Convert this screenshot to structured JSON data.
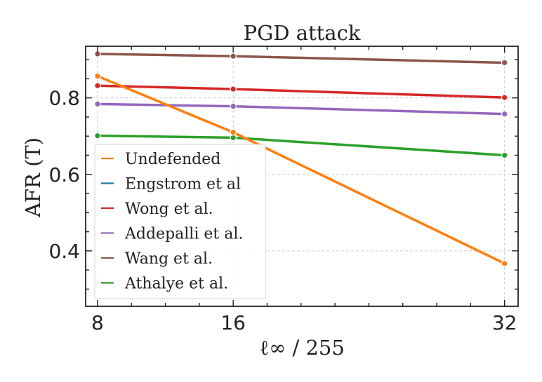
{
  "chart_data": {
    "type": "line",
    "title": "PGD attack",
    "xlabel": "ℓ∞ / 255",
    "ylabel": "AFR (T)",
    "x": [
      8,
      16,
      32
    ],
    "x_tick_labels": [
      "8",
      "16",
      "32"
    ],
    "xlim": [
      7.3,
      32.8
    ],
    "ylim": [
      0.255,
      0.935
    ],
    "y_ticks": [
      0.4,
      0.6,
      0.8
    ],
    "y_tick_labels": [
      "0.4",
      "0.6",
      "0.8"
    ],
    "grid": true,
    "legend_position": "lower-left",
    "series": [
      {
        "name": "Undefended",
        "color": "#ff7f0e",
        "values": [
          0.857,
          0.71,
          0.367
        ]
      },
      {
        "name": "Engstrom et al",
        "color": "#1f77b4",
        "values": null
      },
      {
        "name": "Wong et al.",
        "color": "#d62728",
        "values": [
          0.832,
          0.823,
          0.801
        ]
      },
      {
        "name": "Addepalli et al.",
        "color": "#9467bd",
        "values": [
          0.784,
          0.778,
          0.758
        ]
      },
      {
        "name": "Wang et al.",
        "color": "#8c564b",
        "values": [
          0.915,
          0.909,
          0.892
        ]
      },
      {
        "name": "Athalye et al.",
        "color": "#2ca02c",
        "values": [
          0.701,
          0.696,
          0.65
        ]
      }
    ]
  }
}
